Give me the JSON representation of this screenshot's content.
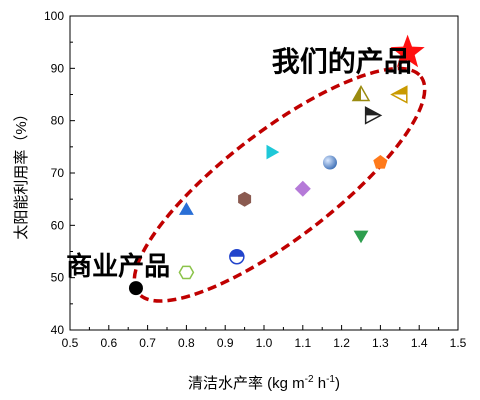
{
  "chart_data": {
    "type": "scatter",
    "xlabel": "清洁水产率 (kg m-2 h-1)",
    "xlabel_parts": {
      "base": "清洁水产率 (kg m",
      "sup1": "-2",
      "mid": " h",
      "sup2": "-1",
      "end": ")"
    },
    "ylabel": "太阳能利用率（%）",
    "xlim": [
      0.5,
      1.5
    ],
    "ylim": [
      40,
      100
    ],
    "x_ticks": [
      "0.5",
      "0.6",
      "0.7",
      "0.8",
      "0.9",
      "1.0",
      "1.1",
      "1.2",
      "1.3",
      "1.4",
      "1.5"
    ],
    "y_ticks": [
      "40",
      "50",
      "60",
      "70",
      "80",
      "90",
      "100"
    ],
    "grid": false,
    "points": [
      {
        "x": 0.67,
        "y": 48,
        "marker": "circle",
        "color": "#000000"
      },
      {
        "x": 0.8,
        "y": 51,
        "marker": "hexagon-open",
        "color": "#8bc34a"
      },
      {
        "x": 0.8,
        "y": 63,
        "marker": "triangle-up",
        "color": "#2a6fd6"
      },
      {
        "x": 0.93,
        "y": 54,
        "marker": "circle-half",
        "color": "#2244cc"
      },
      {
        "x": 0.95,
        "y": 65,
        "marker": "hexagon",
        "color": "#8a5a50"
      },
      {
        "x": 1.02,
        "y": 74,
        "marker": "triangle-right",
        "color": "#1ec8d8"
      },
      {
        "x": 1.1,
        "y": 67,
        "marker": "diamond",
        "color": "#b57ad8"
      },
      {
        "x": 1.17,
        "y": 72,
        "marker": "sphere",
        "color": "#5b8fd1"
      },
      {
        "x": 1.25,
        "y": 58,
        "marker": "triangle-down",
        "color": "#2e9e4e"
      },
      {
        "x": 1.25,
        "y": 85,
        "marker": "triangle-up-half",
        "color": "#9a8b10"
      },
      {
        "x": 1.28,
        "y": 81,
        "marker": "triangle-right-half",
        "color": "#222222"
      },
      {
        "x": 1.3,
        "y": 72,
        "marker": "pentagon",
        "color": "#ff7a1a"
      },
      {
        "x": 1.35,
        "y": 85,
        "marker": "triangle-left-half",
        "color": "#c99a00"
      },
      {
        "x": 1.37,
        "y": 93,
        "marker": "star",
        "color": "#ff1010"
      }
    ],
    "annotations": [
      {
        "text": "我们的产品",
        "x": 1.02,
        "y": 89.5,
        "size": 28
      },
      {
        "text": "商业产品",
        "x": 0.49,
        "y": 50.5,
        "size": 26
      }
    ],
    "highlight_ellipse": {
      "color": "#c00000"
    }
  }
}
